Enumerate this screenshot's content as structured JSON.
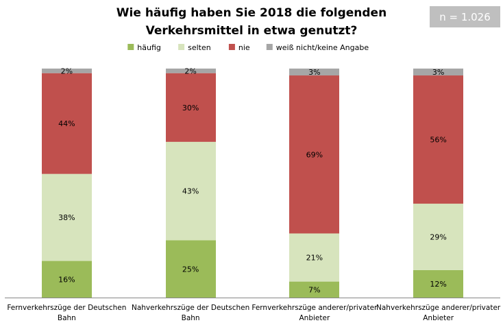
{
  "badge": {
    "label": "n = 1.026",
    "color": "#bfbfbf"
  },
  "chart_data": {
    "type": "bar",
    "stacked": true,
    "title_lines": [
      "Wie häufig haben Sie 2018 die folgenden",
      "Verkehrsmittel in etwa genutzt?"
    ],
    "xlabel": "",
    "ylabel": "",
    "ylim": [
      0,
      100
    ],
    "grid": false,
    "legend_position": "top",
    "categories": [
      [
        "Fernverkehrszüge der Deutschen",
        "Bahn"
      ],
      [
        "Nahverkehrszüge der Deutschen",
        "Bahn"
      ],
      [
        "Fernverkehrszüge anderer/privater",
        "Anbieter"
      ],
      [
        "Nahverkehrszüge anderer/privater",
        "Anbieter"
      ]
    ],
    "series": [
      {
        "name": "häufig",
        "color": "#9bbb59",
        "values": [
          16,
          25,
          7,
          12
        ]
      },
      {
        "name": "selten",
        "color": "#d7e4bd",
        "values": [
          38,
          43,
          21,
          29
        ]
      },
      {
        "name": "nie",
        "color": "#c0504d",
        "values": [
          44,
          30,
          69,
          56
        ]
      },
      {
        "name": "weiß nicht/keine Angabe",
        "color": "#a6a6a6",
        "values": [
          2,
          2,
          3,
          3
        ]
      }
    ],
    "value_suffix": "%"
  }
}
